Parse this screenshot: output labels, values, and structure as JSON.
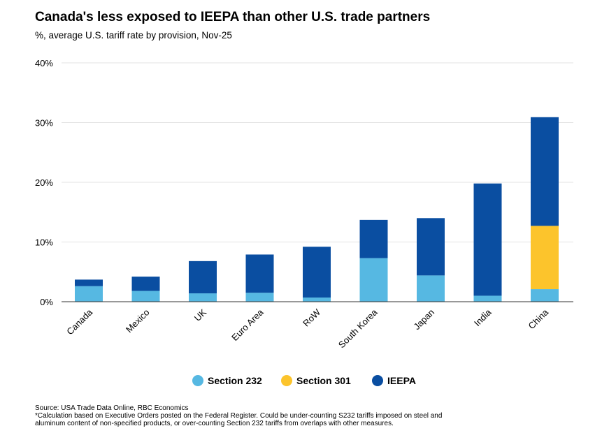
{
  "chart_data": {
    "type": "bar",
    "stacked": true,
    "title": "Canada's less exposed to IEEPA than other U.S. trade partners",
    "subtitle": "%, average U.S. tariff rate by provision, Nov-25",
    "categories": [
      "Canada",
      "Mexico",
      "UK",
      "Euro Area",
      "RoW",
      "South Korea",
      "Japan",
      "India",
      "China"
    ],
    "series": [
      {
        "name": "Section 232",
        "color": "#56b8e2",
        "values": [
          2.6,
          1.8,
          1.4,
          1.5,
          0.7,
          7.3,
          4.4,
          1.0,
          2.1
        ]
      },
      {
        "name": "Section 301",
        "color": "#fcc42c",
        "values": [
          0,
          0,
          0,
          0,
          0,
          0,
          0,
          0,
          10.6
        ]
      },
      {
        "name": "IEEPA",
        "color": "#0a4ea1",
        "values": [
          1.1,
          2.4,
          5.4,
          6.4,
          8.5,
          6.4,
          9.6,
          18.8,
          18.2
        ]
      }
    ],
    "ylim": [
      0,
      40
    ],
    "yticks": [
      0,
      10,
      20,
      30,
      40
    ],
    "ytick_labels": [
      "0%",
      "10%",
      "20%",
      "30%",
      "40%"
    ],
    "legend_position": "bottom"
  },
  "footer": {
    "source": "Source: USA Trade Data Online, RBC Economics",
    "note_line1": "*Calculation based on Executive Orders posted on the Federal Register. Could be under-counting S232 tariffs imposed on steel and",
    "note_line2": "aluminum content of non-specified products, or over-counting Section 232 tariffs from overlaps with other measures."
  }
}
